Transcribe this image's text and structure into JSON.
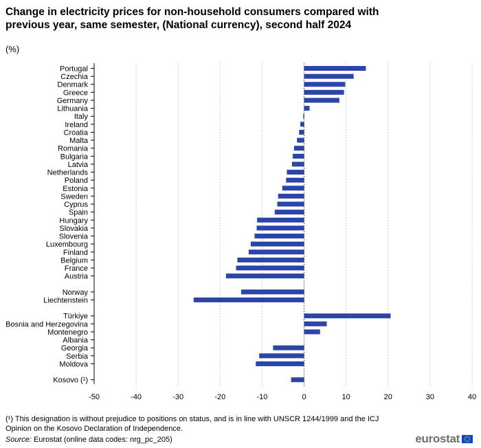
{
  "title": "Change in electricity prices for non-household consumers compared with previous year, same semester, (National currency), second half 2024",
  "unit": "(%)",
  "footnote": "(¹) This designation is without prejudice to positions on status, and is in line with UNSCR 1244/1999 and the ICJ Opinion on the Kosovo Declaration of Independence.",
  "source": {
    "label": "Source:",
    "text": "Eurostat (online data codes: nrg_pc_205)"
  },
  "logo": {
    "text": "eurostat"
  },
  "colors": {
    "bar": "#2b45a8",
    "grid": "#c8c8c8",
    "flag_bg": "#0e47cb",
    "flag_stars": "#ffde00"
  },
  "chart_data": {
    "type": "bar",
    "orientation": "horizontal",
    "xlim": [
      -50,
      40
    ],
    "xticks": [
      -50,
      -40,
      -30,
      -20,
      -10,
      0,
      10,
      20,
      30,
      40
    ],
    "grid": "vertical dotted",
    "series": [
      {
        "name": "Change (%)",
        "groups": [
          {
            "items": [
              {
                "label": "Portugal",
                "value": 14.7
              },
              {
                "label": "Czechia",
                "value": 11.8
              },
              {
                "label": "Denmark",
                "value": 9.8
              },
              {
                "label": "Greece",
                "value": 9.5
              },
              {
                "label": "Germany",
                "value": 8.4
              },
              {
                "label": "Lithuania",
                "value": 1.3
              },
              {
                "label": "Italy",
                "value": -0.2
              },
              {
                "label": "Ireland",
                "value": -0.9
              },
              {
                "label": "Croatia",
                "value": -1.2
              },
              {
                "label": "Malta",
                "value": -1.7
              },
              {
                "label": "Romania",
                "value": -2.4
              },
              {
                "label": "Bulgaria",
                "value": -2.7
              },
              {
                "label": "Latvia",
                "value": -2.9
              },
              {
                "label": "Netherlands",
                "value": -4.1
              },
              {
                "label": "Poland",
                "value": -4.3
              },
              {
                "label": "Estonia",
                "value": -5.2
              },
              {
                "label": "Sweden",
                "value": -6.2
              },
              {
                "label": "Cyprus",
                "value": -6.4
              },
              {
                "label": "Spain",
                "value": -7.0
              },
              {
                "label": "Hungary",
                "value": -11.2
              },
              {
                "label": "Slovakia",
                "value": -11.3
              },
              {
                "label": "Slovenia",
                "value": -11.8
              },
              {
                "label": "Luxembourg",
                "value": -12.7
              },
              {
                "label": "Finland",
                "value": -13.2
              },
              {
                "label": "Belgium",
                "value": -15.9
              },
              {
                "label": "France",
                "value": -16.2
              },
              {
                "label": "Austria",
                "value": -18.6
              }
            ]
          },
          {
            "items": [
              {
                "label": "Norway",
                "value": -15.0
              },
              {
                "label": "Liechtenstein",
                "value": -26.3
              }
            ]
          },
          {
            "items": [
              {
                "label": "Türkiye",
                "value": 20.6
              },
              {
                "label": "Bosnia and Herzegovina",
                "value": 5.4
              },
              {
                "label": "Montenegro",
                "value": 3.8
              },
              {
                "label": "Albania",
                "value": null
              },
              {
                "label": "Georgia",
                "value": -7.4
              },
              {
                "label": "Serbia",
                "value": -10.7
              },
              {
                "label": "Moldova",
                "value": -11.5
              }
            ]
          },
          {
            "items": [
              {
                "label": "Kosovo (¹)",
                "value": -3.1
              }
            ]
          }
        ]
      }
    ]
  }
}
